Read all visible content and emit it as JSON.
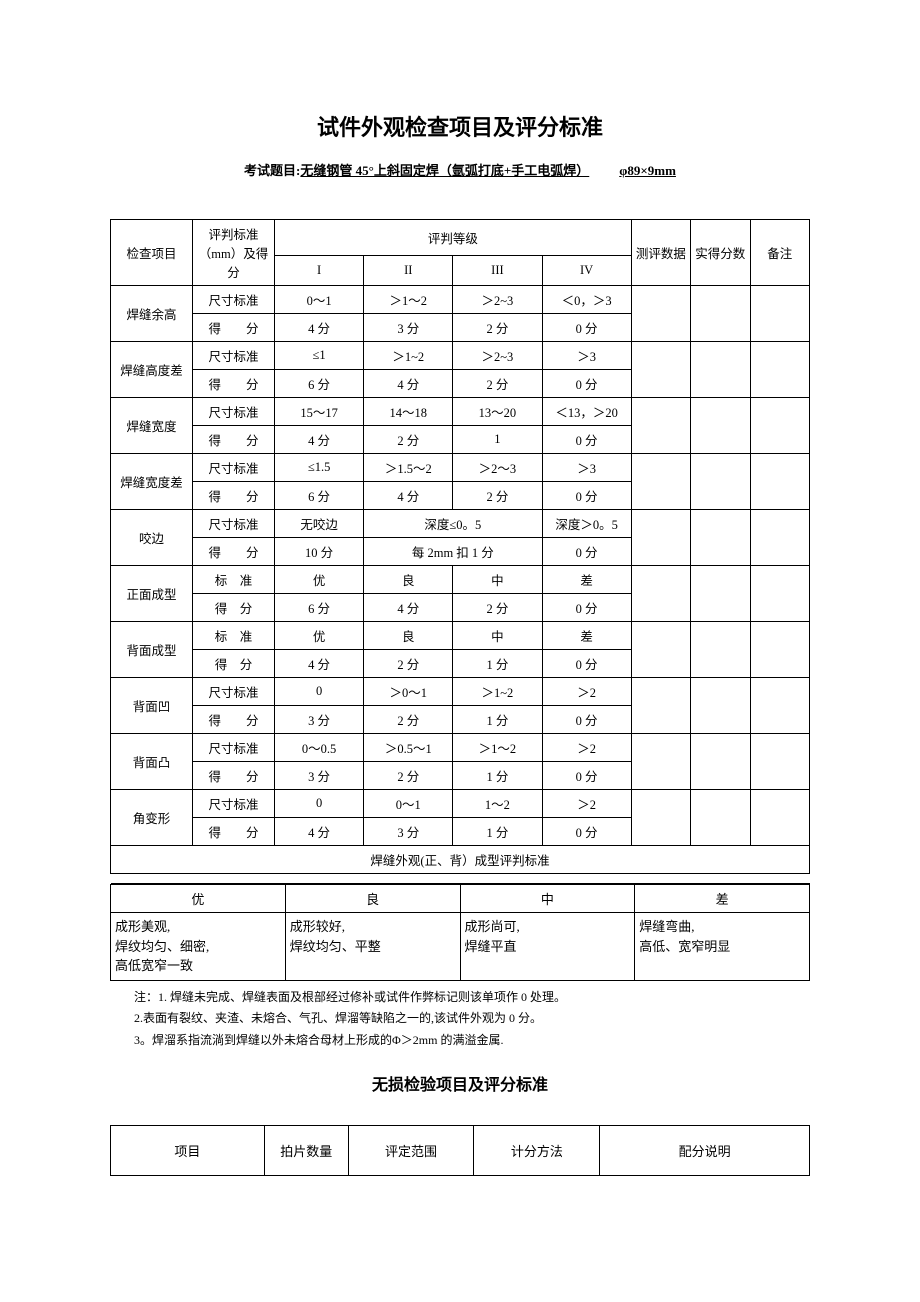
{
  "title": "试件外观检查项目及评分标准",
  "subtitle_label": "考试题目:",
  "subtitle_content": "无缝钢管 45°上斜固定焊（氩弧打底+手工电弧焊）",
  "subtitle_spec": "φ89×9mm",
  "headers": {
    "check_item": "检查项目",
    "standard": "评判标准（mm）及得分",
    "grade": "评判等级",
    "g1": "I",
    "g2": "II",
    "g3": "III",
    "g4": "IV",
    "data": "测评数据",
    "score": "实得分数",
    "remark": "备注"
  },
  "rows": [
    {
      "item": "焊缝余高",
      "r1": {
        "label": "尺寸标准",
        "c1": "0～1",
        "c2": "＞1～2",
        "c3": "＞2~3",
        "c4": "＜0，＞3"
      },
      "r2": {
        "label": "得　　分",
        "c1": "4 分",
        "c2": "3 分",
        "c3": "2 分",
        "c4": "0 分"
      }
    },
    {
      "item": "焊缝高度差",
      "r1": {
        "label": "尺寸标准",
        "c1": "≤1",
        "c2": "＞1~2",
        "c3": "＞2~3",
        "c4": "＞3"
      },
      "r2": {
        "label": "得　　分",
        "c1": "6 分",
        "c2": "4 分",
        "c3": "2 分",
        "c4": "0 分"
      }
    },
    {
      "item": "焊缝宽度",
      "r1": {
        "label": "尺寸标准",
        "c1": "15～17",
        "c2": "14～18",
        "c3": "13～20",
        "c4": "＜13，＞20"
      },
      "r2": {
        "label": "得　　分",
        "c1": "4 分",
        "c2": "2 分",
        "c3": "1",
        "c4": "0 分"
      }
    },
    {
      "item": "焊缝宽度差",
      "r1": {
        "label": "尺寸标准",
        "c1": "≤1.5",
        "c2": "＞1.5～2",
        "c3": "＞2～3",
        "c4": "＞3"
      },
      "r2": {
        "label": "得　　分",
        "c1": "6 分",
        "c2": "4 分",
        "c3": "2 分",
        "c4": "0 分"
      }
    }
  ],
  "bite": {
    "item": "咬边",
    "r1": {
      "label": "尺寸标准",
      "c1": "无咬边",
      "c23": "深度≤0。5",
      "c4": "深度＞0。5"
    },
    "r2": {
      "label": "得　　分",
      "c1": "10 分",
      "c23": "每 2mm 扣 1 分",
      "c4": "0 分"
    }
  },
  "shaperows": [
    {
      "item": "正面成型",
      "r1": {
        "label": "标　准",
        "c1": "优",
        "c2": "良",
        "c3": "中",
        "c4": "差"
      },
      "r2": {
        "label": "得　分",
        "c1": "6 分",
        "c2": "4 分",
        "c3": "2 分",
        "c4": "0 分"
      }
    },
    {
      "item": "背面成型",
      "r1": {
        "label": "标　准",
        "c1": "优",
        "c2": "良",
        "c3": "中",
        "c4": "差"
      },
      "r2": {
        "label": "得　分",
        "c1": "4 分",
        "c2": "2 分",
        "c3": "1 分",
        "c4": "0 分"
      }
    }
  ],
  "backrows": [
    {
      "item": "背面凹",
      "r1": {
        "label": "尺寸标准",
        "c1": "0",
        "c2": "＞0～1",
        "c3": "＞1~2",
        "c4": "＞2"
      },
      "r2": {
        "label": "得　　分",
        "c1": "3 分",
        "c2": "2 分",
        "c3": "1 分",
        "c4": "0 分"
      }
    },
    {
      "item": "背面凸",
      "r1": {
        "label": "尺寸标准",
        "c1": "0～0.5",
        "c2": "＞0.5～1",
        "c3": "＞1～2",
        "c4": "＞2"
      },
      "r2": {
        "label": "得　　分",
        "c1": "3 分",
        "c2": "2 分",
        "c3": "1 分",
        "c4": "0 分"
      }
    },
    {
      "item": "角变形",
      "r1": {
        "label": "尺寸标准",
        "c1": "0",
        "c2": "0～1",
        "c3": "1～2",
        "c4": "＞2"
      },
      "r2": {
        "label": "得　　分",
        "c1": "4 分",
        "c2": "3 分",
        "c3": "1 分",
        "c4": "0 分"
      }
    }
  ],
  "appearance_title": "焊缝外观(正、背）成型评判标准",
  "quality": {
    "h1": "优",
    "h2": "良",
    "h3": "中",
    "h4": "差",
    "d1": "成形美观,\n焊纹均匀、细密,\n高低宽窄一致",
    "d2": "成形较好,\n焊纹均匀、平整",
    "d3": "成形尚可,\n焊缝平直",
    "d4": "焊缝弯曲,\n高低、宽窄明显"
  },
  "notes": {
    "n1": "注：1. 焊缝未完成、焊缝表面及根部经过修补或试件作弊标记则该单项作 0 处理。",
    "n2": "2.表面有裂纹、夹渣、未熔合、气孔、焊溜等缺陷之一的,该试件外观为 0 分。",
    "n3": "3。焊溜系指流淌到焊缝以外未熔合母材上形成的Φ＞2mm 的满溢金属."
  },
  "title2": "无损检验项目及评分标准",
  "bottom": {
    "c1": "项目",
    "c2": "拍片数量",
    "c3": "评定范围",
    "c4": "计分方法",
    "c5": "配分说明"
  }
}
